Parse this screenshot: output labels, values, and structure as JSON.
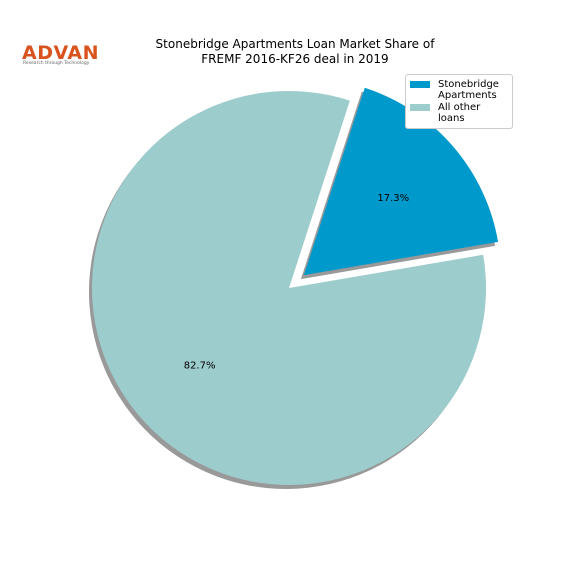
{
  "logo": {
    "name": "ADVAN",
    "tagline": "Research through Technology"
  },
  "chart_data": {
    "type": "pie",
    "title": [
      "Stonebridge Apartments Loan Market Share of",
      "FREMF 2016-KF26 deal in 2019"
    ],
    "categories": [
      "Stonebridge Apartments",
      "All other loans"
    ],
    "values": [
      17.3,
      82.7
    ],
    "value_labels": [
      "17.3%",
      "82.7%"
    ],
    "colors": [
      "#0099cc",
      "#9dcccc"
    ],
    "shadow": true
  }
}
